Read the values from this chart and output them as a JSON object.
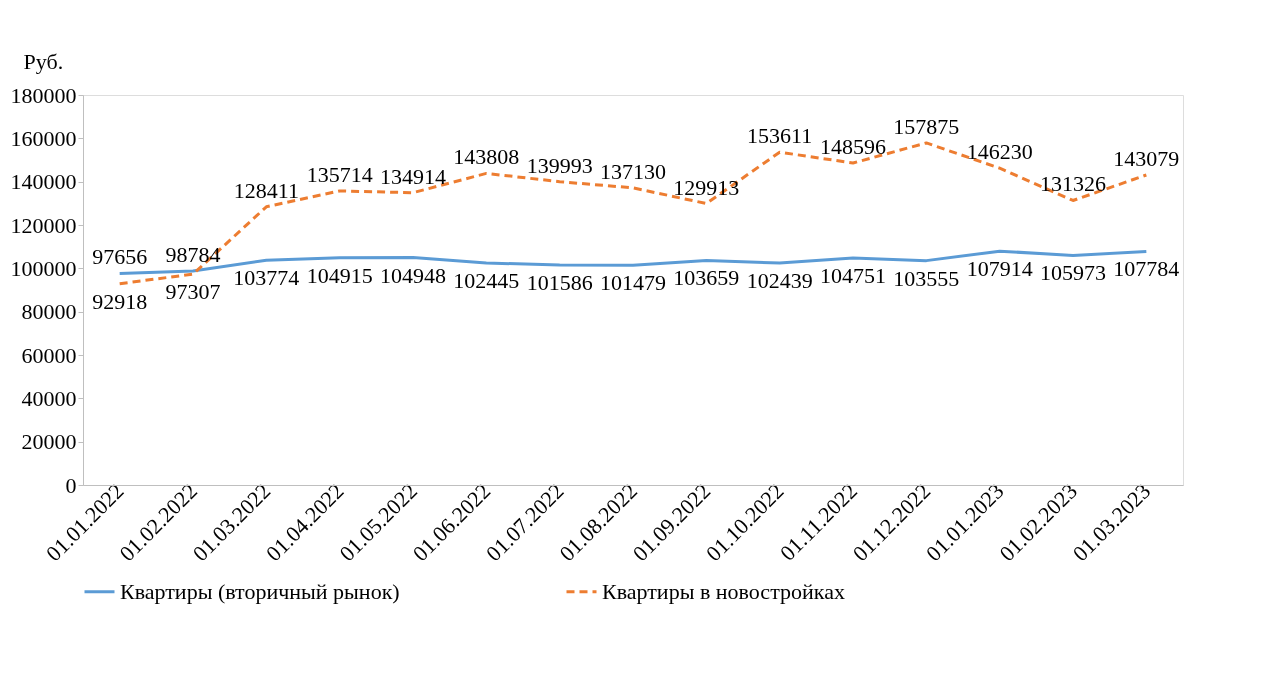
{
  "chart_data": {
    "type": "line",
    "ylabel": "Руб.",
    "categories": [
      "01.01.2022",
      "01.02.2022",
      "01.03.2022",
      "01.04.2022",
      "01.05.2022",
      "01.06.2022",
      "01.07.2022",
      "01.08.2022",
      "01.09.2022",
      "01.10.2022",
      "01.11.2022",
      "01.12.2022",
      "01.01.2023",
      "01.02.2023",
      "01.03.2023"
    ],
    "series": [
      {
        "name": "Квартиры (вторичный рынок)",
        "color": "#5b9bd5",
        "line_style": "solid",
        "values": [
          97656,
          98784,
          103774,
          104915,
          104948,
          102445,
          101586,
          101479,
          103659,
          102439,
          104751,
          103555,
          107914,
          105973,
          107784
        ]
      },
      {
        "name": "Квартиры в новостройках",
        "color": "#ed7d31",
        "line_style": "dashed",
        "values": [
          92918,
          97307,
          128411,
          135714,
          134914,
          143808,
          139993,
          137130,
          129913,
          153611,
          148596,
          157875,
          146230,
          131326,
          143079
        ]
      }
    ],
    "ylim": [
      0,
      180000
    ],
    "yticks": [
      0,
      20000,
      40000,
      60000,
      80000,
      100000,
      120000,
      140000,
      160000,
      180000
    ],
    "data_labels": true,
    "legend": "bottom",
    "grid": false,
    "marker": "none"
  }
}
